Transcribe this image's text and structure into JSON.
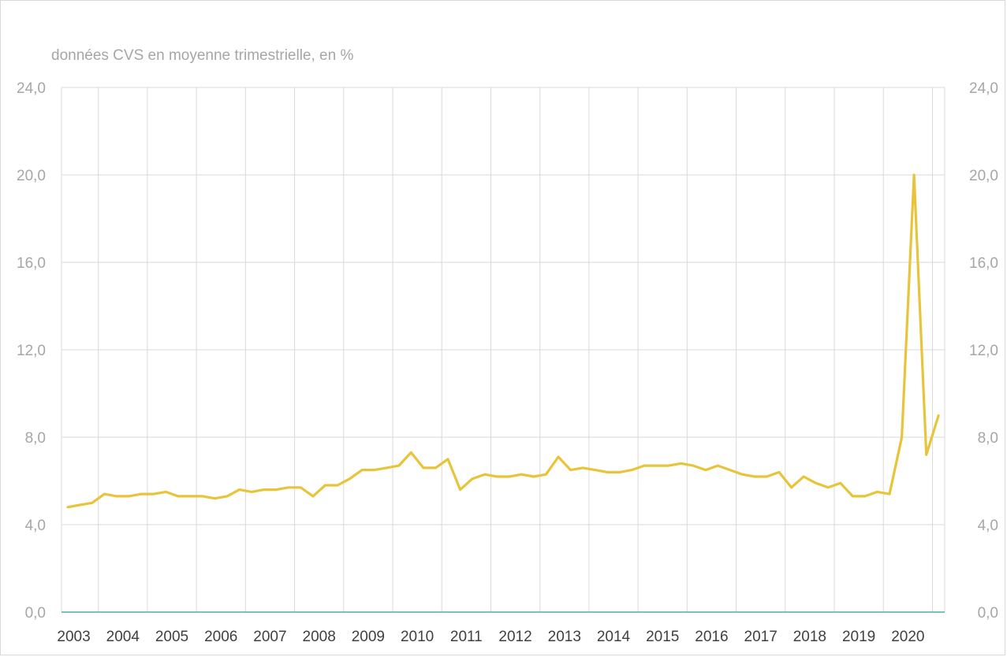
{
  "chart_data": {
    "type": "line",
    "subtitle": "données CVS en moyenne trimestrielle, en %",
    "ylim": [
      0,
      24
    ],
    "y_ticks": [
      "0,0",
      "4,0",
      "8,0",
      "12,0",
      "16,0",
      "20,0",
      "24,0"
    ],
    "y_tick_values": [
      0,
      4,
      8,
      12,
      16,
      20,
      24
    ],
    "secondary_axis": true,
    "year_labels": [
      "2003",
      "2004",
      "2005",
      "2006",
      "2007",
      "2008",
      "2009",
      "2010",
      "2011",
      "2012",
      "2013",
      "2014",
      "2015",
      "2016",
      "2017",
      "2018",
      "2019",
      "2020"
    ],
    "grid": true,
    "legend": "none",
    "series": [
      {
        "color": "#e8c43a",
        "values": [
          4.8,
          4.9,
          5.0,
          5.4,
          5.3,
          5.3,
          5.4,
          5.4,
          5.5,
          5.3,
          5.3,
          5.3,
          5.2,
          5.3,
          5.6,
          5.5,
          5.6,
          5.6,
          5.7,
          5.7,
          5.3,
          5.8,
          5.8,
          6.1,
          6.5,
          6.5,
          6.6,
          6.7,
          7.3,
          6.6,
          6.6,
          7.0,
          5.6,
          6.1,
          6.3,
          6.2,
          6.2,
          6.3,
          6.2,
          6.3,
          7.1,
          6.5,
          6.6,
          6.5,
          6.4,
          6.4,
          6.5,
          6.7,
          6.7,
          6.7,
          6.8,
          6.7,
          6.5,
          6.7,
          6.5,
          6.3,
          6.2,
          6.2,
          6.4,
          5.7,
          6.2,
          5.9,
          5.7,
          5.9,
          5.3,
          5.3,
          5.5,
          5.4,
          8.0,
          20.0,
          7.2,
          9.0
        ]
      }
    ],
    "colors": {
      "line": "#e8c43a",
      "axis_baseline": "#2e9a9a",
      "grid": "#d9d9d9",
      "tick_text": "#a6a6a6",
      "year_text": "#404040"
    }
  }
}
